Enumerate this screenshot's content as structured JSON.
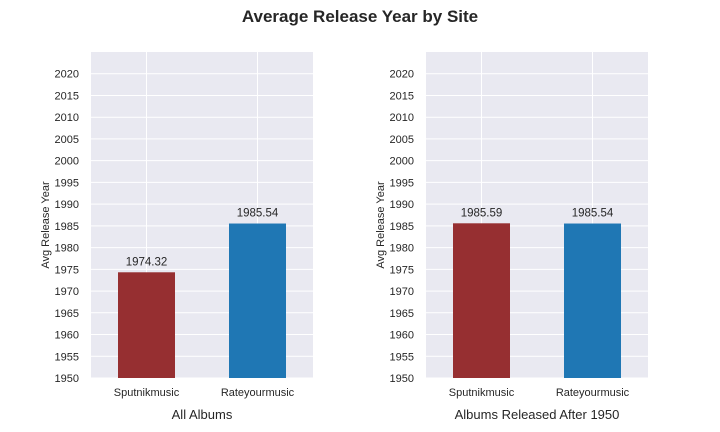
{
  "figure": {
    "title": "Average Release Year by Site"
  },
  "chart_data": [
    {
      "type": "bar",
      "title": "",
      "xlabel": "All Albums",
      "ylabel": "Avg Release Year",
      "categories": [
        "Sputnikmusic",
        "Rateyourmusic"
      ],
      "values": [
        1974.32,
        1985.54
      ],
      "value_labels": [
        "1974.32",
        "1985.54"
      ],
      "colors": [
        "#962f31",
        "#1f77b4"
      ],
      "ylim": [
        1950,
        2025
      ],
      "yticks": [
        1950,
        1955,
        1960,
        1965,
        1970,
        1975,
        1980,
        1985,
        1990,
        1995,
        2000,
        2005,
        2010,
        2015,
        2020
      ],
      "grid": true,
      "background": "#e9e9f1"
    },
    {
      "type": "bar",
      "title": "",
      "xlabel": "Albums Released After 1950",
      "ylabel": "Avg Release Year",
      "categories": [
        "Sputnikmusic",
        "Rateyourmusic"
      ],
      "values": [
        1985.59,
        1985.54
      ],
      "value_labels": [
        "1985.59",
        "1985.54"
      ],
      "colors": [
        "#962f31",
        "#1f77b4"
      ],
      "ylim": [
        1950,
        2025
      ],
      "yticks": [
        1950,
        1955,
        1960,
        1965,
        1970,
        1975,
        1980,
        1985,
        1990,
        1995,
        2000,
        2005,
        2010,
        2015,
        2020
      ],
      "grid": true,
      "background": "#e9e9f1"
    }
  ]
}
